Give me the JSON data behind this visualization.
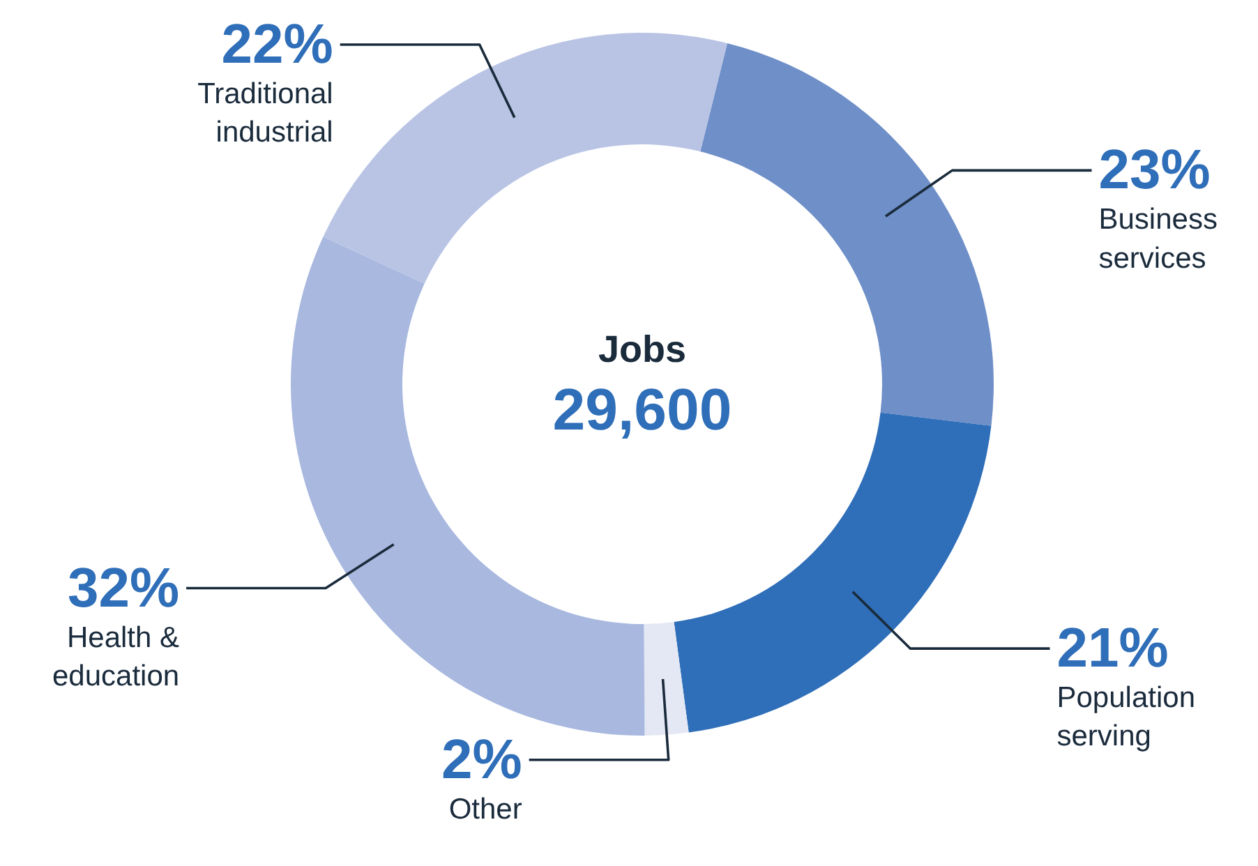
{
  "chart_data": {
    "type": "donut",
    "title": "Jobs",
    "subtitle": "29,600",
    "categories": [
      "Business services",
      "Population serving",
      "Other",
      "Health & education",
      "Traditional industrial"
    ],
    "values": [
      23,
      21,
      2,
      32,
      22
    ],
    "value_labels": [
      "23%",
      "21%",
      "2%",
      "32%",
      "22%"
    ],
    "colors": [
      "#6f8fc8",
      "#2f6eb8",
      "#e4e8f4",
      "#a8b8df",
      "#b9c4e5"
    ]
  }
}
